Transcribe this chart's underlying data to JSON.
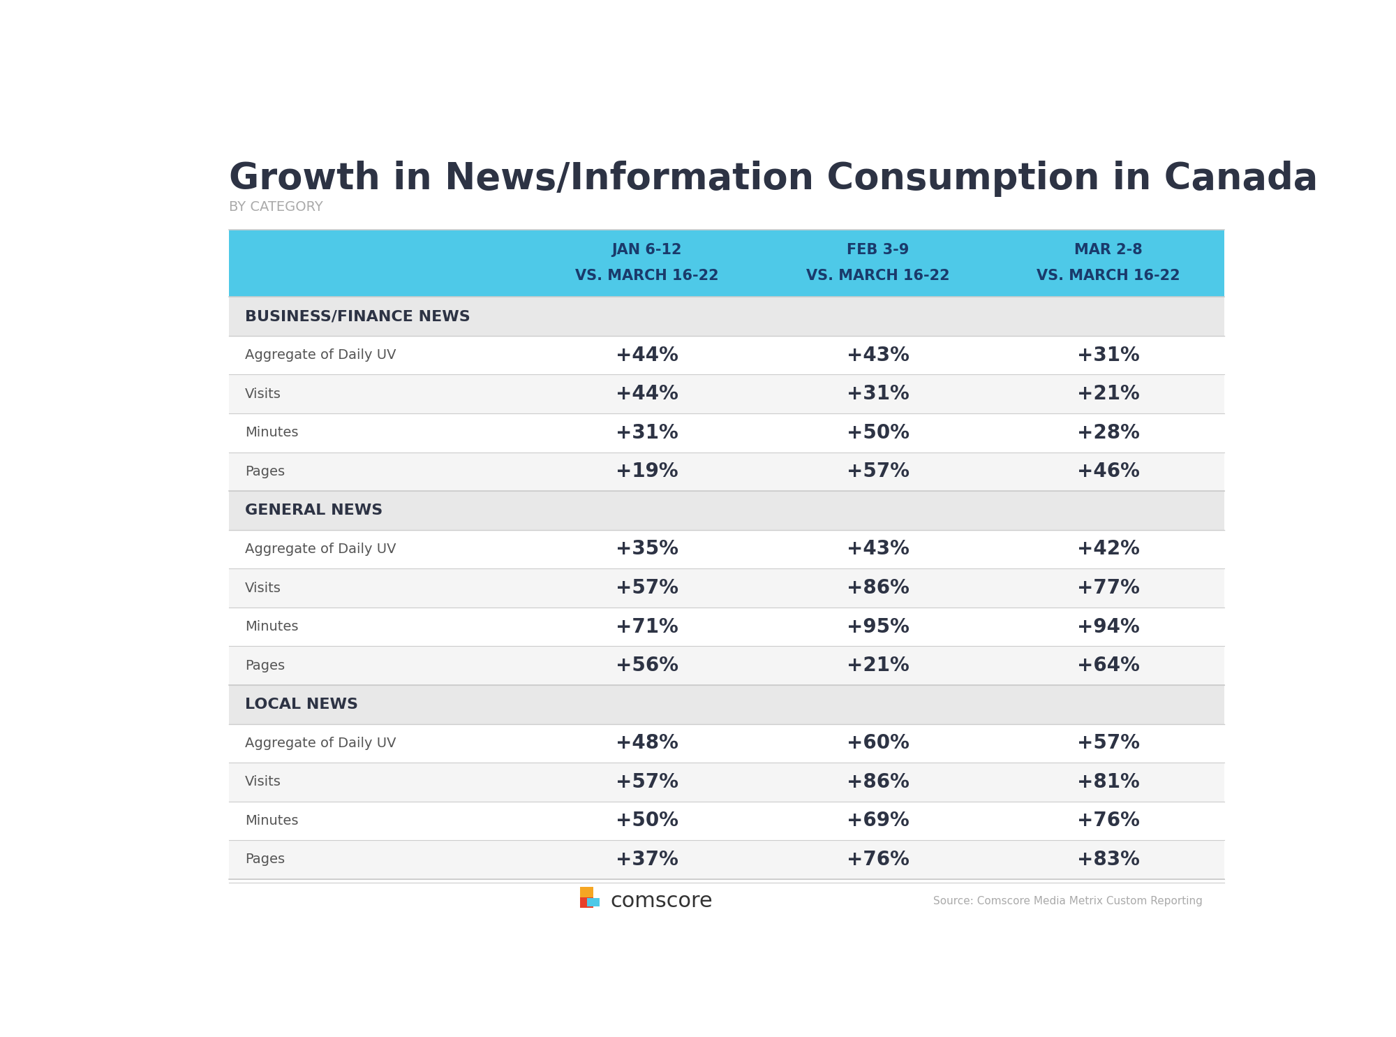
{
  "title": "Growth in News/Information Consumption in Canada",
  "subtitle": "BY CATEGORY",
  "title_color": "#2d3344",
  "subtitle_color": "#aaaaaa",
  "header_bg": "#4ec9e8",
  "header_text_color": "#1a3a6b",
  "section_bg": "#e8e8e8",
  "section_text_color": "#2d3344",
  "row_bg_odd": "#ffffff",
  "row_bg_even": "#f5f5f5",
  "row_text_color": "#555555",
  "value_color": "#2d3344",
  "divider_color": "#cccccc",
  "col_headers": [
    "JAN 6-12\nVS. MARCH 16-22",
    "FEB 3-9\nVS. MARCH 16-22",
    "MAR 2-8\nVS. MARCH 16-22"
  ],
  "sections": [
    {
      "name": "BUSINESS/FINANCE NEWS",
      "rows": [
        {
          "label": "Aggregate of Daily UV",
          "values": [
            "+44%",
            "+43%",
            "+31%"
          ]
        },
        {
          "label": "Visits",
          "values": [
            "+44%",
            "+31%",
            "+21%"
          ]
        },
        {
          "label": "Minutes",
          "values": [
            "+31%",
            "+50%",
            "+28%"
          ]
        },
        {
          "label": "Pages",
          "values": [
            "+19%",
            "+57%",
            "+46%"
          ]
        }
      ]
    },
    {
      "name": "GENERAL NEWS",
      "rows": [
        {
          "label": "Aggregate of Daily UV",
          "values": [
            "+35%",
            "+43%",
            "+42%"
          ]
        },
        {
          "label": "Visits",
          "values": [
            "+57%",
            "+86%",
            "+77%"
          ]
        },
        {
          "label": "Minutes",
          "values": [
            "+71%",
            "+95%",
            "+94%"
          ]
        },
        {
          "label": "Pages",
          "values": [
            "+56%",
            "+21%",
            "+64%"
          ]
        }
      ]
    },
    {
      "name": "LOCAL NEWS",
      "rows": [
        {
          "label": "Aggregate of Daily UV",
          "values": [
            "+48%",
            "+60%",
            "+57%"
          ]
        },
        {
          "label": "Visits",
          "values": [
            "+57%",
            "+86%",
            "+81%"
          ]
        },
        {
          "label": "Minutes",
          "values": [
            "+50%",
            "+69%",
            "+76%"
          ]
        },
        {
          "label": "Pages",
          "values": [
            "+37%",
            "+76%",
            "+83%"
          ]
        }
      ]
    }
  ],
  "source_text": "Source: Comscore Media Metrix Custom Reporting",
  "comscore_text": "comscore",
  "background_color": "#ffffff",
  "logo_orange": "#f5a623",
  "logo_red": "#e8402a",
  "logo_blue": "#4ec9e8"
}
